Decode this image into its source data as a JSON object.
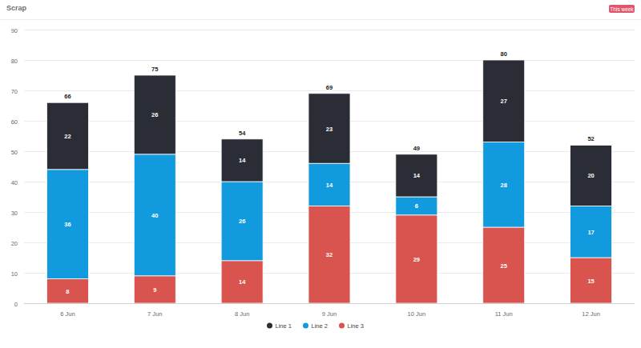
{
  "chart_data": {
    "type": "bar",
    "title": "Scrap",
    "annotations": [
      "This week"
    ],
    "categories": [
      "6 Jun",
      "7 Jun",
      "8 Jun",
      "9 Jun",
      "10 Jun",
      "11 Jun",
      "12 Jun"
    ],
    "series": [
      {
        "name": "Line 1",
        "color": "#2a2d35",
        "values": [
          22,
          26,
          14,
          23,
          14,
          27,
          20
        ]
      },
      {
        "name": "Line 2",
        "color": "#119ade",
        "values": [
          36,
          40,
          26,
          14,
          6,
          28,
          17
        ]
      },
      {
        "name": "Line 3",
        "color": "#d9534f",
        "values": [
          8,
          9,
          14,
          32,
          29,
          25,
          15
        ]
      }
    ],
    "totals": [
      66,
      75,
      54,
      69,
      49,
      80,
      52
    ],
    "ylim": [
      0,
      90
    ],
    "yticks": [
      0,
      10,
      20,
      30,
      40,
      50,
      60,
      70,
      80,
      90
    ],
    "grid": true,
    "stacked": true,
    "data_labels": true,
    "legend": "bottom"
  }
}
